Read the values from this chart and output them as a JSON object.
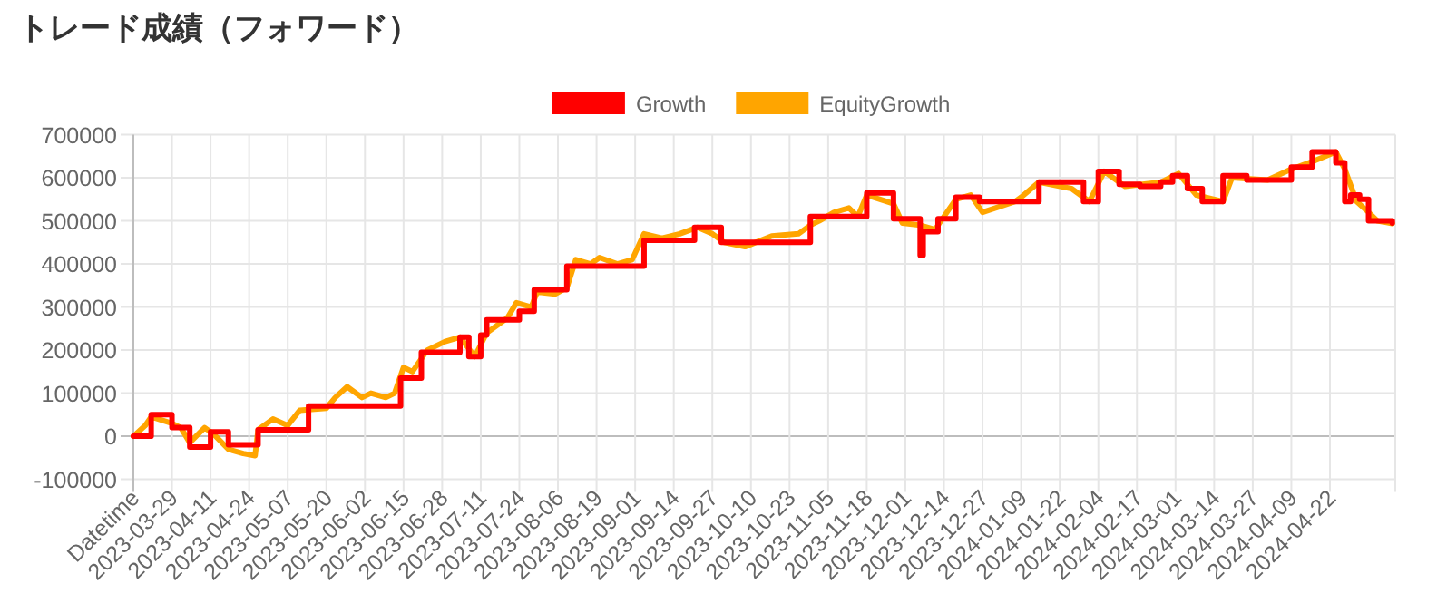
{
  "chart_data": {
    "type": "line",
    "title": "トレード成績（フォワード）",
    "xlim": [
      "2023-03-16",
      "2024-05-14"
    ],
    "xticks": [
      {
        "value": "2023-03-16",
        "label": "Datetime"
      },
      "2023-03-29",
      "2023-04-11",
      "2023-04-24",
      "2023-05-07",
      "2023-05-20",
      "2023-06-02",
      "2023-06-15",
      "2023-06-28",
      "2023-07-11",
      "2023-07-24",
      "2023-08-06",
      "2023-08-19",
      "2023-09-01",
      "2023-09-14",
      "2023-09-27",
      "2023-10-10",
      "2023-10-23",
      "2023-11-05",
      "2023-11-18",
      "2023-12-01",
      "2023-12-14",
      "2023-12-27",
      "2024-01-09",
      "2024-01-22",
      "2024-02-04",
      "2024-02-17",
      "2024-03-01",
      "2024-03-14",
      "2024-03-27",
      "2024-04-09",
      "2024-04-22",
      {
        "value": "2024-05-14",
        "label": null
      }
    ],
    "ylim": [
      -100000,
      700000
    ],
    "yticks": [
      -100000,
      0,
      100000,
      200000,
      300000,
      400000,
      500000,
      600000,
      700000
    ],
    "grid": true,
    "legend": "top",
    "marker": "none",
    "line_style": "solid",
    "series": [
      {
        "name": "Growth",
        "color": "#ff0000",
        "type": "step",
        "x": [
          "2023-03-16",
          "2023-03-22",
          "2023-03-29",
          "2023-04-04",
          "2023-04-11",
          "2023-04-17",
          "2023-04-27",
          "2023-05-14",
          "2023-06-14",
          "2023-06-21",
          "2023-07-04",
          "2023-07-07",
          "2023-07-11",
          "2023-07-13",
          "2023-07-24",
          "2023-07-29",
          "2023-08-09",
          "2023-09-04",
          "2023-09-21",
          "2023-09-30",
          "2023-10-30",
          "2023-11-18",
          "2023-11-27",
          "2023-12-06",
          "2023-12-07",
          "2023-12-12",
          "2023-12-18",
          "2023-12-26",
          "2024-01-15",
          "2024-01-30",
          "2024-02-04",
          "2024-02-11",
          "2024-02-18",
          "2024-02-25",
          "2024-02-29",
          "2024-03-05",
          "2024-03-10",
          "2024-03-17",
          "2024-03-25",
          "2024-04-09",
          "2024-04-16",
          "2024-04-24",
          "2024-04-27",
          "2024-04-29",
          "2024-05-02",
          "2024-05-05",
          "2024-05-13"
        ],
        "values": [
          0,
          50000,
          20000,
          -25000,
          10000,
          -20000,
          15000,
          70000,
          135000,
          195000,
          230000,
          185000,
          235000,
          270000,
          290000,
          340000,
          395000,
          455000,
          485000,
          450000,
          510000,
          565000,
          505000,
          420000,
          475000,
          505000,
          555000,
          545000,
          590000,
          545000,
          615000,
          585000,
          580000,
          590000,
          605000,
          575000,
          545000,
          605000,
          595000,
          625000,
          660000,
          635000,
          545000,
          560000,
          550000,
          500000,
          495000
        ]
      },
      {
        "name": "EquityGrowth",
        "color": "#ffa500",
        "x": [
          "2023-03-16",
          "2023-03-20",
          "2023-03-22",
          "2023-03-29",
          "2023-04-01",
          "2023-04-04",
          "2023-04-09",
          "2023-04-12",
          "2023-04-17",
          "2023-04-22",
          "2023-04-26",
          "2023-04-27",
          "2023-05-02",
          "2023-05-07",
          "2023-05-11",
          "2023-05-20",
          "2023-05-23",
          "2023-05-27",
          "2023-06-01",
          "2023-06-04",
          "2023-06-09",
          "2023-06-12",
          "2023-06-15",
          "2023-06-18",
          "2023-06-23",
          "2023-06-29",
          "2023-07-04",
          "2023-07-09",
          "2023-07-13",
          "2023-07-20",
          "2023-07-23",
          "2023-07-28",
          "2023-07-30",
          "2023-08-05",
          "2023-08-09",
          "2023-08-12",
          "2023-08-17",
          "2023-08-20",
          "2023-08-26",
          "2023-08-31",
          "2023-09-04",
          "2023-09-10",
          "2023-09-16",
          "2023-09-22",
          "2023-09-27",
          "2023-10-01",
          "2023-10-08",
          "2023-10-17",
          "2023-10-26",
          "2023-10-30",
          "2023-11-02",
          "2023-11-07",
          "2023-11-12",
          "2023-11-15",
          "2023-11-18",
          "2023-11-27",
          "2023-11-30",
          "2023-12-06",
          "2023-12-11",
          "2023-12-15",
          "2023-12-18",
          "2023-12-23",
          "2023-12-27",
          "2024-01-07",
          "2024-01-09",
          "2024-01-15",
          "2024-01-26",
          "2024-02-01",
          "2024-02-06",
          "2024-02-13",
          "2024-02-25",
          "2024-03-02",
          "2024-03-08",
          "2024-03-17",
          "2024-03-20",
          "2024-04-01",
          "2024-04-09",
          "2024-04-17",
          "2024-04-24",
          "2024-04-27",
          "2024-05-01",
          "2024-05-05",
          "2024-05-08",
          "2024-05-13"
        ],
        "values": [
          0,
          25000,
          45000,
          30000,
          20000,
          -15000,
          20000,
          5000,
          -30000,
          -40000,
          -45000,
          15000,
          40000,
          25000,
          60000,
          65000,
          90000,
          115000,
          90000,
          100000,
          90000,
          100000,
          160000,
          150000,
          200000,
          220000,
          230000,
          185000,
          240000,
          275000,
          310000,
          300000,
          335000,
          330000,
          345000,
          410000,
          400000,
          415000,
          400000,
          410000,
          470000,
          460000,
          470000,
          485000,
          470000,
          450000,
          440000,
          465000,
          470000,
          490000,
          500000,
          520000,
          530000,
          510000,
          560000,
          540000,
          495000,
          490000,
          480000,
          520000,
          550000,
          560000,
          520000,
          545000,
          555000,
          590000,
          575000,
          545000,
          615000,
          580000,
          590000,
          610000,
          560000,
          545000,
          600000,
          595000,
          620000,
          640000,
          660000,
          620000,
          545000,
          520000,
          500000,
          494000
        ]
      }
    ]
  }
}
